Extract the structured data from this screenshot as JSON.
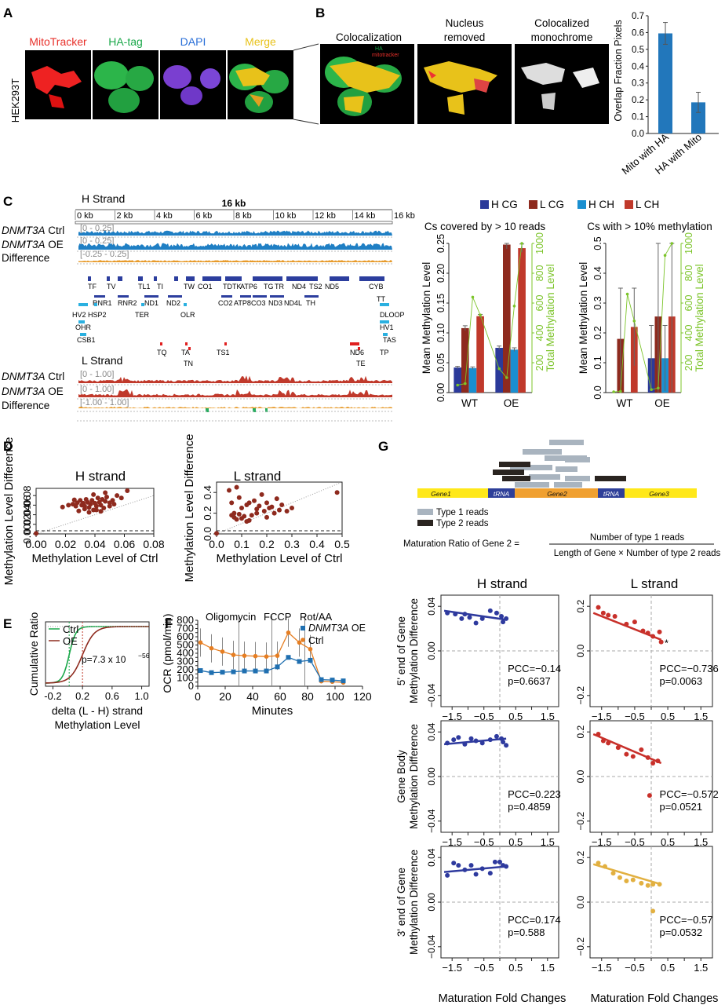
{
  "panels": {
    "A": "A",
    "B": "B",
    "C": "C",
    "D": "D",
    "E": "E",
    "F": "F",
    "G": "G"
  },
  "panel_a": {
    "cell_line": "HEK293T",
    "channels": [
      "MitoTracker",
      "HA-tag",
      "DAPI",
      "Merge"
    ],
    "colors": {
      "mito": "#e8302a",
      "ha": "#1aa84a",
      "dapi": "#2a6fd8",
      "merge": "#e8c21a"
    }
  },
  "panel_b": {
    "images": [
      "Colocalization",
      "Nucleus removed",
      "Colocalized monochrome"
    ],
    "inset_labels": [
      "HA",
      "mitotracker"
    ]
  },
  "chart_b": {
    "ylabel": "Overlap Fraction Pixels",
    "yticks": [
      "0.0",
      "0.1",
      "0.2",
      "0.3",
      "0.4",
      "0.5",
      "0.6",
      "0.7"
    ],
    "categories": [
      "Mito with HA",
      "HA with Mito"
    ]
  },
  "panel_c": {
    "h_strand": "H Strand",
    "l_strand": "L Strand",
    "scale": "16 kb",
    "ruler": [
      "0 kb",
      "2 kb",
      "4 kb",
      "6 kb",
      "8 kb",
      "10 kb",
      "12 kb",
      "14 kb",
      "16 kb"
    ],
    "gene": "DNMT3A",
    "ctrl": " Ctrl",
    "oe": " OE",
    "difference": "Difference",
    "h_ranges": [
      "[0 - 0.25]",
      "[0 - 0.25]",
      "[-0.25 - 0.25]"
    ],
    "l_ranges": [
      "[0 - 1.00]",
      "[0 - 1.00]",
      "[-1.00 - 1.00]"
    ],
    "genes_row1": [
      "TF",
      "TV",
      "TL1",
      "TI",
      "TW",
      "TD",
      "TK",
      "TG",
      "TR",
      "TS2",
      "CYB"
    ],
    "genes_row1b": [
      "RNR1",
      "RNR2",
      "ND1",
      "ND2",
      "CO1",
      "CO2",
      "ATP8",
      "ATP6",
      "CO3",
      "ND3",
      "ND4L",
      "ND4",
      "TH",
      "ND5"
    ],
    "genes_hv": [
      "HV2",
      "HSP2",
      "TER",
      "OLR",
      "DLOOP",
      "TT",
      "HV1",
      "OHR",
      "CSB1",
      "TAS"
    ],
    "genes_l": [
      "TQ",
      "TA",
      "TN",
      "TS1",
      "ND6",
      "TE",
      "TP"
    ]
  },
  "chart_c": {
    "legend": [
      "H CG",
      "L CG",
      "H CH",
      "L CH"
    ],
    "titles": [
      "Cs covered by > 10 reads",
      "Cs with > 10% methylation"
    ],
    "ylabel": "Mean Methylation Level",
    "y2label": "Total Methylation Level",
    "groups": [
      "WT",
      "OE"
    ],
    "yticks": [
      "0.00",
      "0.05",
      "0.10",
      "0.15",
      "0.20",
      "0.25"
    ],
    "yticks2": [
      "0.0",
      "0.1",
      "0.2",
      "0.3",
      "0.4",
      "0.5"
    ],
    "y2ticks": [
      "200",
      "400",
      "600",
      "800",
      "1000"
    ]
  },
  "chart_d": {
    "titles": [
      "H strand",
      "L strand"
    ],
    "ylabel": "Methylation Level Difference",
    "xlabel": "Methylation Level of Ctrl",
    "xticks_h": [
      "0.00",
      "0.02",
      "0.04",
      "0.06",
      "0.08"
    ],
    "yticks_h": [
      "0.00",
      "0.02",
      "0.04",
      "0.06",
      "0.08"
    ],
    "xticks_l": [
      "0.0",
      "0.1",
      "0.2",
      "0.3",
      "0.4",
      "0.5"
    ],
    "yticks_l": [
      "0.0",
      "0.2",
      "0.4"
    ]
  },
  "chart_e": {
    "ylabel": "Cumulative Ratio",
    "xlabel": [
      "delta (L - H) strand",
      "Methylation Level"
    ],
    "legend": [
      "Ctrl",
      "OE"
    ],
    "pvalue": "p=7.3 x 10",
    "pexp": "−56",
    "xticks": [
      "-0.2",
      "0.2",
      "0.6",
      "1.0"
    ]
  },
  "chart_f": {
    "ylabel": "OCR (pmol/min)",
    "xlabel": "Minutes",
    "phases": [
      "Oligomycin",
      "FCCP",
      "Rot/AA"
    ],
    "legend": [
      "DNMT3A OE",
      "Ctrl"
    ],
    "x": [
      2,
      10,
      18,
      26,
      34,
      42,
      50,
      58,
      66,
      74,
      82,
      90,
      98,
      106
    ],
    "oe": [
      190,
      165,
      170,
      175,
      185,
      185,
      185,
      235,
      350,
      300,
      315,
      80,
      75,
      65
    ],
    "ctrl": [
      530,
      460,
      420,
      380,
      370,
      365,
      360,
      370,
      650,
      530,
      450,
      60,
      55,
      45
    ],
    "yticks": [
      "0",
      "50",
      "100",
      "150",
      "200",
      "250",
      "300",
      "350",
      "400",
      "450",
      "500",
      "550",
      "600",
      "650",
      "700",
      "750",
      "800"
    ],
    "xticks": [
      "0",
      "20",
      "40",
      "60",
      "80",
      "100",
      "120"
    ]
  },
  "panel_g": {
    "genes": [
      "Gene1",
      "tRNA",
      "Gene2",
      "tRNA",
      "Gene3"
    ],
    "legend": [
      "Type 1 reads",
      "Type 2 reads"
    ],
    "formula_left": "Maturation Ratio  of Gene 2  =",
    "numerator": "Number of type 1 reads",
    "denominator": "Length of Gene × Number of type 2 reads",
    "col_titles": [
      "H strand",
      "L strand"
    ],
    "row_labels": [
      [
        "5' end of Gene",
        "Methylation Difference"
      ],
      [
        "Gene Body",
        "Methylation Difference"
      ],
      [
        "3' end of Gene",
        "Methylation Difference"
      ]
    ],
    "xlabel": "Maturation Fold Changes",
    "star": "*",
    "h_yticks": [
      "0.04",
      "0.02",
      "0.00",
      "−0.02",
      "−0.04"
    ],
    "l_yticks": [
      "0.2",
      "0.1",
      "0.0",
      "−0.1",
      "−0.2"
    ],
    "xticks": [
      "−1.5",
      "−1.0",
      "−0.5",
      "0.0",
      "0.5",
      "1.0",
      "1.5"
    ],
    "stats": [
      {
        "pcc": "PCC=−0.14",
        "p": "p=0.6637"
      },
      {
        "pcc": "PCC=−0.736",
        "p": "p=0.0063"
      },
      {
        "pcc": "PCC=0.223",
        "p": "p=0.4859"
      },
      {
        "pcc": "PCC=−0.572",
        "p": "p=0.0521"
      },
      {
        "pcc": "PCC=0.174",
        "p": "p=0.588"
      },
      {
        "pcc": "PCC=−0.57",
        "p": "p=0.0532"
      }
    ]
  },
  "chart_data": [
    {
      "type": "bar",
      "title": "Overlap Fraction Pixels",
      "categories": [
        "Mito with HA",
        "HA with Mito"
      ],
      "values": [
        0.595,
        0.185
      ],
      "errors": [
        0.065,
        0.06
      ],
      "ylim": [
        0,
        0.7
      ],
      "ylabel": "Overlap Fraction Pixels"
    },
    {
      "type": "bar",
      "title": "Cs covered by > 10 reads",
      "categories": [
        "WT",
        "OE"
      ],
      "series": [
        {
          "name": "H CG",
          "values": [
            0.042,
            0.075
          ]
        },
        {
          "name": "L CG",
          "values": [
            0.108,
            0.248
          ]
        },
        {
          "name": "H CH",
          "values": [
            0.041,
            0.072
          ]
        },
        {
          "name": "L CH",
          "values": [
            0.128,
            0.242
          ]
        }
      ],
      "errors": [
        [
          0.002,
          0.003
        ],
        [
          0.004,
          0.007
        ],
        [
          0.002,
          0.003
        ],
        [
          0.003,
          0.007
        ]
      ],
      "total_line": [
        50,
        60,
        640,
        520,
        160,
        100,
        580,
        1000
      ],
      "ylim": [
        0,
        0.25
      ],
      "y2lim": [
        0,
        1000
      ]
    },
    {
      "type": "bar",
      "title": "Cs with > 10% methylation",
      "categories": [
        "WT",
        "OE"
      ],
      "series": [
        {
          "name": "H CG",
          "values": [
            0.0,
            0.115
          ]
        },
        {
          "name": "L CG",
          "values": [
            0.18,
            0.255
          ]
        },
        {
          "name": "H CH",
          "values": [
            0.0,
            0.115
          ]
        },
        {
          "name": "L CH",
          "values": [
            0.22,
            0.255
          ]
        }
      ],
      "errors": [
        [
          0,
          0.11
        ],
        [
          0.17,
          0.26
        ],
        [
          0,
          0.11
        ],
        [
          0.13,
          0.26
        ]
      ],
      "total_line": [
        5,
        8,
        660,
        480,
        20,
        30,
        920,
        1000
      ],
      "ylim": [
        0,
        0.5
      ],
      "y2lim": [
        0,
        1000
      ]
    },
    {
      "type": "scatter",
      "title": "H strand",
      "points": [
        [
          0,
          0.001
        ],
        [
          0.018,
          0.056
        ],
        [
          0.022,
          0.06
        ],
        [
          0.025,
          0.062
        ],
        [
          0.027,
          0.058
        ],
        [
          0.028,
          0.065
        ],
        [
          0.03,
          0.07
        ],
        [
          0.031,
          0.06
        ],
        [
          0.032,
          0.064
        ],
        [
          0.033,
          0.058
        ],
        [
          0.034,
          0.072
        ],
        [
          0.035,
          0.066
        ],
        [
          0.036,
          0.055
        ],
        [
          0.037,
          0.062
        ],
        [
          0.038,
          0.07
        ],
        [
          0.039,
          0.05
        ],
        [
          0.04,
          0.064
        ],
        [
          0.041,
          0.058
        ],
        [
          0.042,
          0.075
        ],
        [
          0.043,
          0.066
        ],
        [
          0.044,
          0.06
        ],
        [
          0.045,
          0.072
        ],
        [
          0.046,
          0.054
        ],
        [
          0.047,
          0.068
        ],
        [
          0.048,
          0.077
        ],
        [
          0.05,
          0.065
        ],
        [
          0.052,
          0.07
        ],
        [
          0.055,
          0.08
        ],
        [
          0.058,
          0.075
        ],
        [
          0.062,
          0.09
        ],
        [
          0.036,
          0.045
        ],
        [
          0.041,
          0.05
        ],
        [
          0.044,
          0.047
        ],
        [
          0.033,
          0.052
        ],
        [
          0.039,
          0.082
        ],
        [
          0.047,
          0.086
        ],
        [
          0.05,
          0.058
        ],
        [
          0.029,
          0.048
        ],
        [
          0.026,
          0.071
        ],
        [
          0.053,
          0.062
        ]
      ],
      "xlim": [
        0,
        0.08
      ],
      "ylim": [
        0,
        0.09
      ]
    },
    {
      "type": "scatter",
      "title": "L strand",
      "points": [
        [
          0,
          0.005
        ],
        [
          0.05,
          0.42
        ],
        [
          0.06,
          0.3
        ],
        [
          0.07,
          0.2
        ],
        [
          0.08,
          0.45
        ],
        [
          0.09,
          0.35
        ],
        [
          0.1,
          0.25
        ],
        [
          0.1,
          0.15
        ],
        [
          0.12,
          0.28
        ],
        [
          0.13,
          0.3
        ],
        [
          0.14,
          0.18
        ],
        [
          0.15,
          0.32
        ],
        [
          0.16,
          0.24
        ],
        [
          0.17,
          0.27
        ],
        [
          0.18,
          0.38
        ],
        [
          0.19,
          0.22
        ],
        [
          0.2,
          0.3
        ],
        [
          0.21,
          0.25
        ],
        [
          0.22,
          0.26
        ],
        [
          0.23,
          0.2
        ],
        [
          0.24,
          0.34
        ],
        [
          0.26,
          0.28
        ],
        [
          0.28,
          0.22
        ],
        [
          0.3,
          0.25
        ],
        [
          0.11,
          0.17
        ],
        [
          0.13,
          0.13
        ],
        [
          0.08,
          0.14
        ],
        [
          0.09,
          0.19
        ],
        [
          0.16,
          0.2
        ],
        [
          0.12,
          0.12
        ],
        [
          0.06,
          0.18
        ],
        [
          0.07,
          0.16
        ],
        [
          0.2,
          0.16
        ],
        [
          0.25,
          0.23
        ],
        [
          0.48,
          0.4
        ]
      ],
      "xlim": [
        0,
        0.5
      ],
      "ylim": [
        0,
        0.48
      ]
    },
    {
      "type": "line",
      "title": "Cumulative distribution",
      "series": [
        {
          "name": "Ctrl",
          "median": 0.02
        },
        {
          "name": "OE",
          "median": 0.2
        }
      ],
      "xlim": [
        -0.3,
        1.1
      ],
      "ylim": [
        0,
        1
      ]
    },
    {
      "type": "line",
      "title": "OCR",
      "x": [
        2,
        10,
        18,
        26,
        34,
        42,
        50,
        58,
        66,
        74,
        82,
        90,
        98,
        106
      ],
      "series": [
        {
          "name": "DNMT3A OE",
          "values": [
            190,
            165,
            170,
            175,
            185,
            185,
            185,
            235,
            350,
            300,
            315,
            80,
            75,
            65
          ]
        },
        {
          "name": "Ctrl",
          "values": [
            530,
            460,
            420,
            380,
            370,
            365,
            360,
            370,
            650,
            530,
            450,
            60,
            55,
            45
          ]
        }
      ],
      "xlim": [
        0,
        120
      ],
      "ylim": [
        0,
        800
      ]
    },
    {
      "type": "scatter",
      "title": "5' H",
      "points": [
        [
          -1.65,
          0.034
        ],
        [
          -1.4,
          0.033
        ],
        [
          -1.2,
          0.029
        ],
        [
          -1.1,
          0.033
        ],
        [
          -0.95,
          0.03
        ],
        [
          -0.75,
          0.025
        ],
        [
          -0.55,
          0.029
        ],
        [
          -0.3,
          0.036
        ],
        [
          -0.1,
          0.034
        ],
        [
          0.05,
          0.031
        ],
        [
          0.1,
          0.026
        ],
        [
          0.2,
          0.029
        ]
      ],
      "fit": [
        [
          -1.75,
          0.036
        ],
        [
          0.2,
          0.028
        ]
      ]
    },
    {
      "type": "scatter",
      "title": "5' L",
      "points": [
        [
          -1.6,
          0.195
        ],
        [
          -1.45,
          0.17
        ],
        [
          -1.3,
          0.16
        ],
        [
          -1.1,
          0.155
        ],
        [
          -0.75,
          0.12
        ],
        [
          -0.5,
          0.13
        ],
        [
          -0.25,
          0.09
        ],
        [
          -0.1,
          0.08
        ],
        [
          0.05,
          0.065
        ],
        [
          0.25,
          0.085
        ],
        [
          0.3,
          0.04
        ]
      ],
      "fit": [
        [
          -1.75,
          0.17
        ],
        [
          0.3,
          0.05
        ]
      ]
    },
    {
      "type": "scatter",
      "title": "Body H",
      "points": [
        [
          -1.65,
          0.03
        ],
        [
          -1.45,
          0.033
        ],
        [
          -1.3,
          0.035
        ],
        [
          -1.1,
          0.029
        ],
        [
          -0.9,
          0.034
        ],
        [
          -0.75,
          0.032
        ],
        [
          -0.55,
          0.03
        ],
        [
          -0.3,
          0.033
        ],
        [
          -0.1,
          0.036
        ],
        [
          0.05,
          0.034
        ],
        [
          0.2,
          0.028
        ],
        [
          0.1,
          0.031
        ]
      ],
      "fit": [
        [
          -1.75,
          0.029
        ],
        [
          0.2,
          0.034
        ]
      ]
    },
    {
      "type": "scatter",
      "title": "Body L",
      "points": [
        [
          -1.6,
          0.19
        ],
        [
          -1.45,
          0.16
        ],
        [
          -1.3,
          0.15
        ],
        [
          -1.0,
          0.13
        ],
        [
          -0.75,
          0.1
        ],
        [
          -0.55,
          0.09
        ],
        [
          -0.3,
          0.12
        ],
        [
          -0.1,
          0.085
        ],
        [
          0.05,
          0.06
        ],
        [
          0.2,
          0.07
        ],
        [
          -0.05,
          -0.085
        ]
      ],
      "fit": [
        [
          -1.75,
          0.19
        ],
        [
          0.3,
          0.06
        ]
      ]
    },
    {
      "type": "scatter",
      "title": "3' H",
      "points": [
        [
          -1.65,
          0.024
        ],
        [
          -1.45,
          0.035
        ],
        [
          -1.3,
          0.033
        ],
        [
          -1.1,
          0.029
        ],
        [
          -0.9,
          0.033
        ],
        [
          -0.75,
          0.025
        ],
        [
          -0.55,
          0.03
        ],
        [
          -0.3,
          0.026
        ],
        [
          -0.15,
          0.036
        ],
        [
          0.0,
          0.036
        ],
        [
          0.1,
          0.033
        ],
        [
          0.2,
          0.032
        ]
      ],
      "fit": [
        [
          -1.75,
          0.027
        ],
        [
          0.2,
          0.032
        ]
      ]
    },
    {
      "type": "scatter",
      "title": "3' L",
      "points": [
        [
          -1.6,
          0.175
        ],
        [
          -1.4,
          0.16
        ],
        [
          -1.15,
          0.13
        ],
        [
          -0.95,
          0.11
        ],
        [
          -0.75,
          0.095
        ],
        [
          -0.55,
          0.1
        ],
        [
          -0.3,
          0.085
        ],
        [
          -0.1,
          0.075
        ],
        [
          0.05,
          0.08
        ],
        [
          0.25,
          0.08
        ],
        [
          0.05,
          -0.04
        ]
      ],
      "fit": [
        [
          -1.75,
          0.17
        ],
        [
          0.3,
          0.08
        ]
      ]
    }
  ]
}
